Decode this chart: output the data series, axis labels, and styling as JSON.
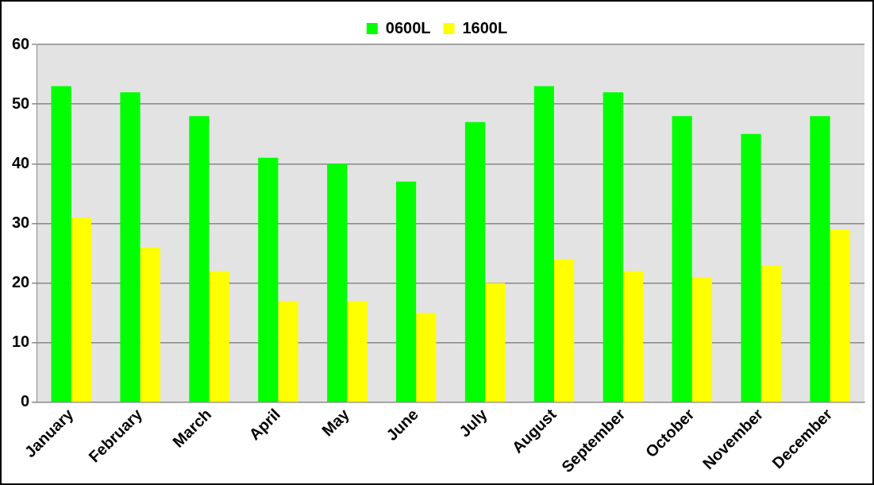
{
  "chart_data": {
    "type": "bar",
    "categories": [
      "January",
      "February",
      "March",
      "April",
      "May",
      "June",
      "July",
      "August",
      "September",
      "October",
      "November",
      "December"
    ],
    "series": [
      {
        "name": "0600L",
        "color": "#00ff00",
        "values": [
          53,
          52,
          48,
          41,
          40,
          37,
          47,
          53,
          52,
          48,
          45,
          48
        ]
      },
      {
        "name": "1600L",
        "color": "#ffff00",
        "values": [
          31,
          26,
          22,
          17,
          17,
          15,
          20,
          24,
          22,
          21,
          23,
          29
        ]
      }
    ],
    "ylim": [
      0,
      60
    ],
    "yticks": [
      0,
      10,
      20,
      30,
      40,
      50,
      60
    ],
    "grid": "y",
    "legend": "top"
  }
}
